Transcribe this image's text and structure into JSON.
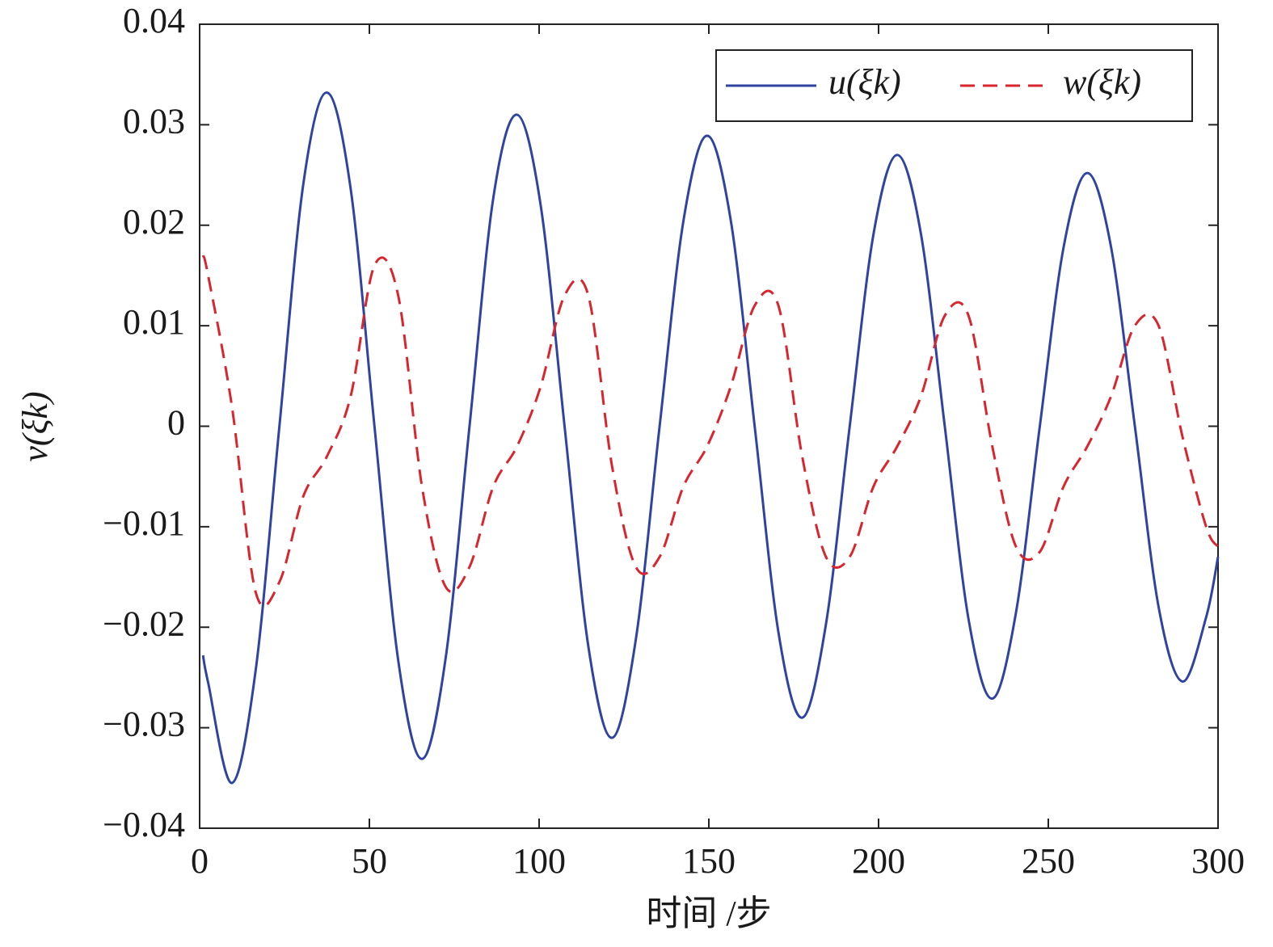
{
  "chart_data": {
    "type": "line",
    "xlabel": "时间 /步",
    "ylabel": "v(ξk)",
    "x": [
      1,
      2.5,
      9.5,
      16.5,
      23.5,
      30.5,
      37.5,
      44.5,
      51.5,
      58.5,
      65.5,
      72.5,
      79.5,
      86.5,
      93.5,
      100.5,
      107.5,
      114.5,
      121.5,
      128.5,
      135.5,
      142.5,
      149.5,
      156.5,
      163.5,
      170.5,
      177.5,
      184.5,
      191.5,
      198.5,
      205.5,
      212.5,
      219.5,
      226.5,
      233.5,
      240.5,
      247.5,
      254.5,
      261.5,
      268.5,
      275.5,
      282.5,
      289.5,
      296.5,
      300
    ],
    "series": [
      {
        "name": "u(ξk)",
        "color": "#2e44a0",
        "style": "solid",
        "values": [
          -0.0228,
          -0.0255,
          -0.0355,
          -0.0243,
          0,
          0.024,
          0.0332,
          0.0236,
          0,
          -0.0233,
          -0.0331,
          -0.023,
          0,
          0.0227,
          0.031,
          0.0219,
          0,
          -0.0219,
          -0.031,
          -0.0212,
          0,
          0.0204,
          0.0289,
          0.0204,
          0,
          -0.0205,
          -0.029,
          -0.0197,
          0,
          0.0191,
          0.027,
          0.0191,
          0,
          -0.0192,
          -0.0271,
          -0.0185,
          0,
          0.0178,
          0.0252,
          0.0178,
          0,
          -0.018,
          -0.0254,
          -0.019,
          -0.013
        ]
      },
      {
        "name": "w(ξk)",
        "color": "#d9262e",
        "style": "dashed",
        "values": [
          0.017,
          0.015,
          0.002,
          -0.0165,
          -0.0155,
          -0.007,
          -0.003,
          0.003,
          0.016,
          0.013,
          -0.006,
          -0.016,
          -0.014,
          -0.006,
          -0.002,
          0.004,
          0.013,
          0.013,
          -0.004,
          -0.014,
          -0.013,
          -0.006,
          -0.002,
          0.004,
          0.012,
          0.012,
          -0.003,
          -0.013,
          -0.013,
          -0.006,
          -0.002,
          0.003,
          0.011,
          0.011,
          -0.002,
          -0.012,
          -0.0125,
          -0.006,
          -0.002,
          0.003,
          0.01,
          0.01,
          -0.001,
          -0.01,
          -0.012
        ]
      }
    ],
    "xlim": [
      0,
      300
    ],
    "xticks": [
      0,
      50,
      100,
      150,
      200,
      250,
      300
    ],
    "ylim": [
      -0.04,
      0.04
    ],
    "yticks": [
      {
        "value": -0.04,
        "label": "−0.04"
      },
      {
        "value": -0.03,
        "label": "−0.03"
      },
      {
        "value": -0.02,
        "label": "−0.02"
      },
      {
        "value": -0.01,
        "label": "−0.01"
      },
      0,
      0.01,
      0.02,
      0.03,
      0.04
    ],
    "legend": "upper right",
    "grid": false
  }
}
